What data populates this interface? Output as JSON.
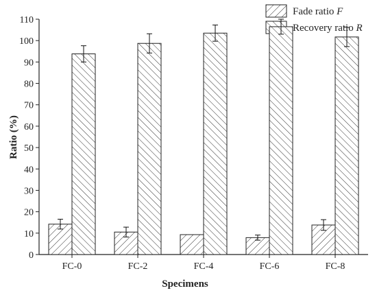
{
  "chart_data": {
    "type": "bar",
    "categories": [
      "FC-0",
      "FC-2",
      "FC-4",
      "FC-6",
      "FC-8"
    ],
    "series": [
      {
        "name": "Fade ratio F",
        "name_text": "Fade ratio ",
        "name_symbol": "F",
        "values": [
          14.2,
          10.5,
          9.3,
          7.9,
          13.8
        ],
        "errors": [
          2.3,
          2.3,
          0,
          1.2,
          2.5
        ]
      },
      {
        "name": "Recovery ratio R",
        "name_text": "Recovery ratio ",
        "name_symbol": "R",
        "values": [
          93.8,
          98.7,
          103.5,
          106.5,
          101.7
        ],
        "errors": [
          3.8,
          4.5,
          3.8,
          3.5,
          4.5
        ]
      }
    ],
    "xlabel": "Specimens",
    "ylabel": "Ratio (%)",
    "ylim": [
      0,
      110
    ],
    "yticks": [
      "0",
      "10",
      "20",
      "30",
      "40",
      "50",
      "60",
      "70",
      "80",
      "90",
      "100",
      "110"
    ],
    "legend_position": "top-right",
    "grid": false
  },
  "colors": {
    "axis": "#222222",
    "hatch": "#333333",
    "bar_fill": "#ffffff"
  }
}
